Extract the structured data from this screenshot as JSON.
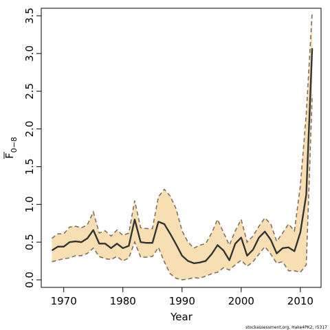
{
  "chart_data": {
    "type": "line",
    "xlabel": "Year",
    "ylabel": {
      "base": "F",
      "subscript": "0−8",
      "overline": true
    },
    "xlim": [
      1966.2,
      2013.5
    ],
    "ylim": [
      -0.1,
      3.6
    ],
    "x_ticks": [
      1970,
      1980,
      1990,
      2000,
      2010
    ],
    "y_ticks": [
      0.0,
      0.5,
      1.0,
      1.5,
      2.0,
      2.5,
      3.0,
      3.5
    ],
    "y_tick_labels": [
      "0.0",
      "0.5",
      "1.0",
      "1.5",
      "2.0",
      "2.5",
      "3.0",
      "3.5"
    ],
    "grid": false,
    "x": [
      1968,
      1969,
      1970,
      1971,
      1972,
      1973,
      1974,
      1975,
      1976,
      1977,
      1978,
      1979,
      1980,
      1981,
      1982,
      1983,
      1984,
      1985,
      1986,
      1987,
      1988,
      1989,
      1990,
      1991,
      1992,
      1993,
      1994,
      1995,
      1996,
      1997,
      1998,
      1999,
      2000,
      2001,
      2002,
      2003,
      2004,
      2005,
      2006,
      2007,
      2008,
      2009,
      2010,
      2011,
      2012
    ],
    "series": [
      {
        "role": "median",
        "values": [
          0.39,
          0.44,
          0.44,
          0.5,
          0.51,
          0.5,
          0.55,
          0.66,
          0.48,
          0.48,
          0.42,
          0.48,
          0.42,
          0.45,
          0.8,
          0.5,
          0.49,
          0.49,
          0.77,
          0.74,
          0.61,
          0.47,
          0.32,
          0.25,
          0.22,
          0.23,
          0.25,
          0.34,
          0.46,
          0.39,
          0.26,
          0.48,
          0.56,
          0.32,
          0.4,
          0.56,
          0.64,
          0.53,
          0.35,
          0.42,
          0.43,
          0.38,
          0.63,
          1.13,
          3.07
        ]
      },
      {
        "role": "upper",
        "values": [
          0.55,
          0.61,
          0.61,
          0.7,
          0.71,
          0.69,
          0.73,
          0.9,
          0.62,
          0.65,
          0.58,
          0.66,
          0.59,
          0.62,
          1.05,
          0.69,
          0.68,
          0.68,
          1.1,
          1.2,
          1.11,
          0.94,
          0.65,
          0.5,
          0.42,
          0.46,
          0.48,
          0.62,
          0.8,
          0.63,
          0.46,
          0.65,
          0.8,
          0.5,
          0.58,
          0.71,
          0.82,
          0.74,
          0.51,
          0.62,
          0.74,
          0.65,
          1.25,
          2.2,
          3.55
        ]
      },
      {
        "role": "lower",
        "values": [
          0.24,
          0.26,
          0.28,
          0.29,
          0.32,
          0.32,
          0.35,
          0.42,
          0.31,
          0.28,
          0.27,
          0.31,
          0.25,
          0.29,
          0.5,
          0.3,
          0.3,
          0.31,
          0.43,
          0.24,
          0.08,
          0.02,
          0.0,
          0.01,
          0.03,
          0.02,
          0.05,
          0.08,
          0.1,
          0.16,
          0.13,
          0.2,
          0.26,
          0.18,
          0.24,
          0.34,
          0.44,
          0.34,
          0.22,
          0.24,
          0.12,
          0.12,
          0.1,
          0.2,
          2.45
        ]
      }
    ],
    "colors": {
      "band": "#f7deb3",
      "median": "#333333",
      "bounds": "#807060",
      "axis": "#000000"
    }
  },
  "footnote": "stockassessment.org, Hake4PK2, r5317"
}
